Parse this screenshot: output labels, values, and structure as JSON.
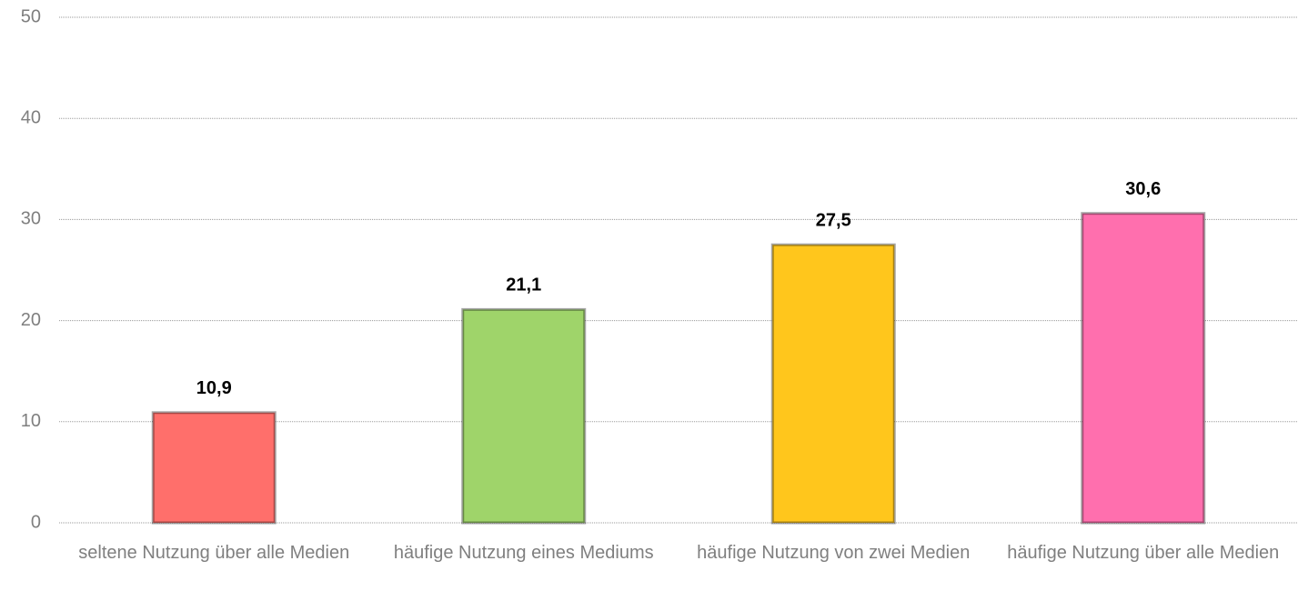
{
  "chart_data": {
    "type": "bar",
    "categories": [
      "seltene Nutzung über alle Medien",
      "häufige Nutzung eines Mediums",
      "häufige Nutzung von zwei Medien",
      "häufige Nutzung über alle Medien"
    ],
    "values": [
      10.9,
      21.1,
      27.5,
      30.6
    ],
    "value_labels": [
      "10,9",
      "21,1",
      "27,5",
      "30,6"
    ],
    "colors": [
      "#ff6f6b",
      "#9fd46a",
      "#ffc61c",
      "#ff6fae"
    ],
    "ylim": [
      0,
      50
    ],
    "yticks": [
      0,
      10,
      20,
      30,
      40,
      50
    ],
    "grid": true
  }
}
